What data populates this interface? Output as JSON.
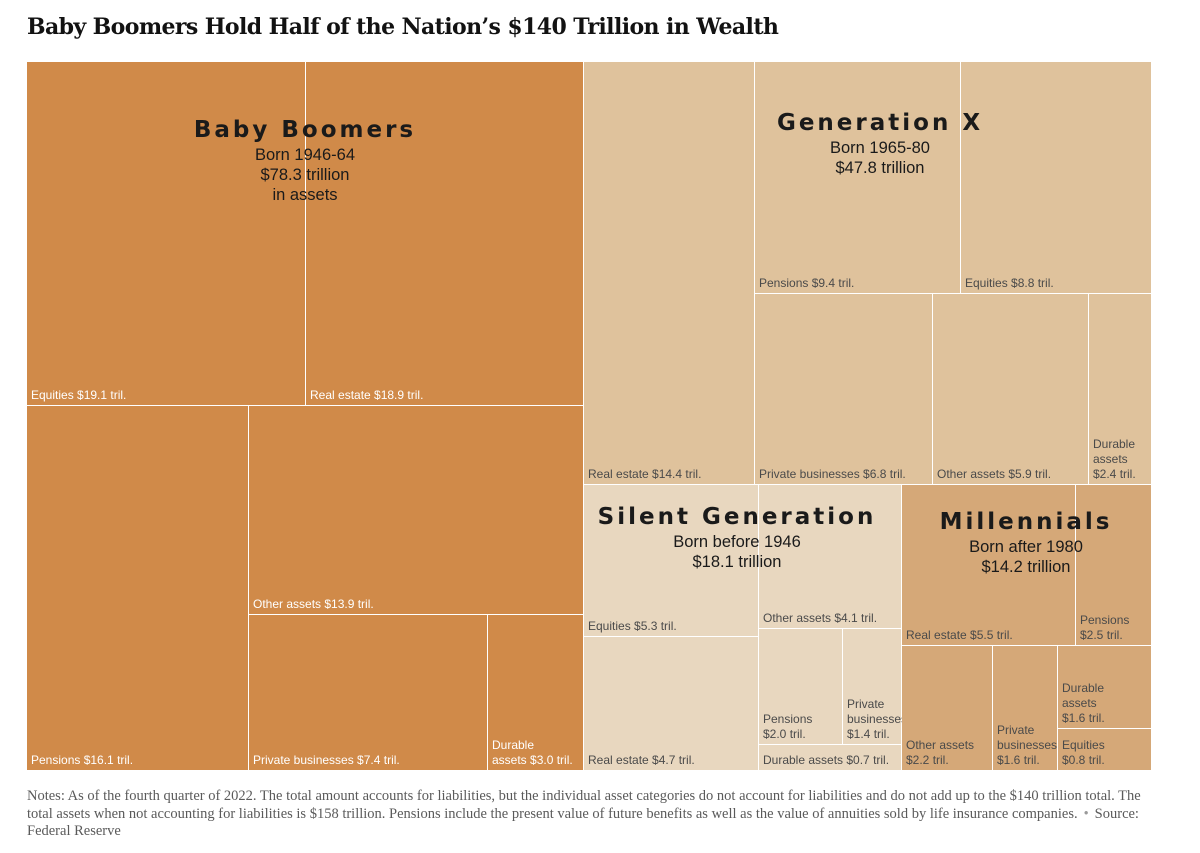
{
  "title": "Baby Boomers Hold Half of the Nation’s $140 Trillion in Wealth",
  "chart_data": {
    "type": "treemap",
    "unit": "trillion dollars",
    "groups": [
      {
        "id": "boomers",
        "name": "Baby Boomers",
        "lines": [
          "Born 1946-64",
          "$78.3 trillion",
          "in assets"
        ],
        "total": 78.3,
        "color": "#d08a49",
        "label_color": "#ffffff",
        "children": [
          {
            "category": "Equities",
            "value": 19.1,
            "label": "Equities $19.1 tril."
          },
          {
            "category": "Real estate",
            "value": 18.9,
            "label": "Real estate $18.9 tril."
          },
          {
            "category": "Pensions",
            "value": 16.1,
            "label": "Pensions $16.1 tril."
          },
          {
            "category": "Other assets",
            "value": 13.9,
            "label": "Other assets $13.9 tril."
          },
          {
            "category": "Private businesses",
            "value": 7.4,
            "label": "Private businesses $7.4 tril."
          },
          {
            "category": "Durable assets",
            "value": 3.0,
            "label": "Durable\nassets $3.0 tril."
          }
        ]
      },
      {
        "id": "genx",
        "name": "Generation X",
        "lines": [
          "Born 1965-80",
          "$47.8 trillion"
        ],
        "total": 47.8,
        "color": "#dfc29c",
        "label_color": "#4a4a4a",
        "children": [
          {
            "category": "Real estate",
            "value": 14.4,
            "label": "Real estate $14.4 tril."
          },
          {
            "category": "Pensions",
            "value": 9.4,
            "label": "Pensions $9.4 tril."
          },
          {
            "category": "Equities",
            "value": 8.8,
            "label": "Equities $8.8 tril."
          },
          {
            "category": "Private businesses",
            "value": 6.8,
            "label": "Private businesses $6.8 tril."
          },
          {
            "category": "Other assets",
            "value": 5.9,
            "label": "Other assets $5.9 tril."
          },
          {
            "category": "Durable assets",
            "value": 2.4,
            "label": "Durable\nassets\n$2.4 tril."
          }
        ]
      },
      {
        "id": "silent",
        "name": "Silent Generation",
        "lines": [
          "Born before 1946",
          "$18.1 trillion"
        ],
        "total": 18.1,
        "color": "#e8d7bf",
        "label_color": "#4a4a4a",
        "children": [
          {
            "category": "Equities",
            "value": 5.3,
            "label": "Equities $5.3 tril."
          },
          {
            "category": "Real estate",
            "value": 4.7,
            "label": "Real estate $4.7 tril."
          },
          {
            "category": "Other assets",
            "value": 4.1,
            "label": "Other assets $4.1 tril."
          },
          {
            "category": "Pensions",
            "value": 2.0,
            "label": "Pensions\n$2.0 tril."
          },
          {
            "category": "Private businesses",
            "value": 1.4,
            "label": "Private\nbusinesses\n$1.4 tril."
          },
          {
            "category": "Durable assets",
            "value": 0.7,
            "label": "Durable assets $0.7 tril."
          }
        ]
      },
      {
        "id": "millennials",
        "name": "Millennials",
        "lines": [
          "Born after 1980",
          "$14.2 trillion"
        ],
        "total": 14.2,
        "color": "#d5a878",
        "label_color": "#4a4a4a",
        "children": [
          {
            "category": "Real estate",
            "value": 5.5,
            "label": "Real estate $5.5 tril."
          },
          {
            "category": "Pensions",
            "value": 2.5,
            "label": "Pensions\n$2.5 tril."
          },
          {
            "category": "Other assets",
            "value": 2.2,
            "label": "Other assets\n$2.2 tril."
          },
          {
            "category": "Private businesses",
            "value": 1.6,
            "label": "Private\nbusinesses\n$1.6 tril."
          },
          {
            "category": "Durable assets",
            "value": 1.6,
            "label": "Durable\nassets\n$1.6 tril."
          },
          {
            "category": "Equities",
            "value": 0.8,
            "label": "Equities\n$0.8 tril."
          }
        ]
      }
    ]
  },
  "notes": {
    "text": "Notes: As of the fourth quarter of 2022. The total amount accounts for liabilities, but the individual asset categories do not account for liabilities and do not add up to the $140 trillion total. The total assets when not accounting for liabilities is $158 trillion. Pensions include the present value of future benefits as well as the value of annuities sold by life insurance companies.",
    "source": "Source: Federal Reserve"
  }
}
